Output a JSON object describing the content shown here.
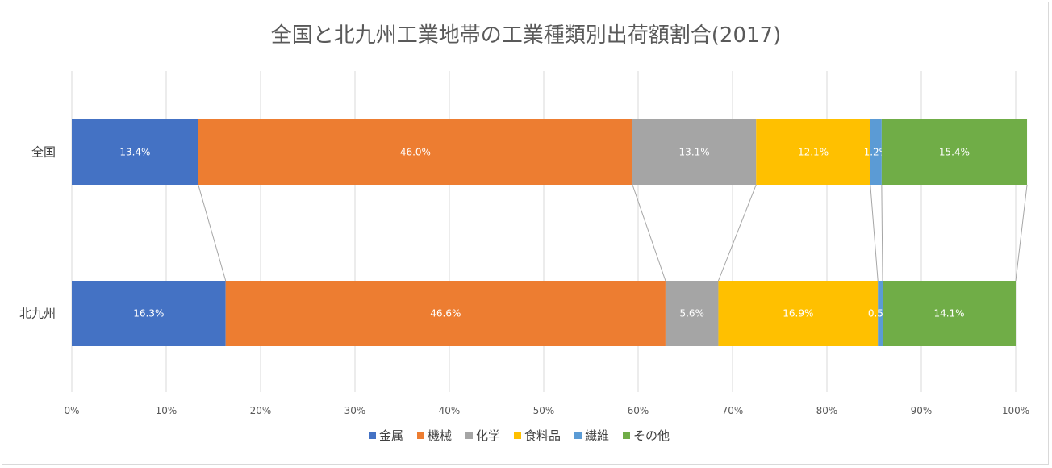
{
  "chart_data": {
    "type": "bar",
    "orientation": "horizontal",
    "stacked": "percent",
    "title": "全国と北九州工業地帯の工業種類別出荷額割合(2017)",
    "categories": [
      "全国",
      "北九州"
    ],
    "series": [
      {
        "name": "金属",
        "color": "#4472C4",
        "values": [
          13.4,
          16.3
        ],
        "labels": [
          "13.4%",
          "16.3%"
        ]
      },
      {
        "name": "機械",
        "color": "#ED7D31",
        "values": [
          46.0,
          46.6
        ],
        "labels": [
          "46.0%",
          "46.6%"
        ]
      },
      {
        "name": "化学",
        "color": "#A5A5A5",
        "values": [
          13.1,
          5.6
        ],
        "labels": [
          "13.1%",
          "5.6%"
        ]
      },
      {
        "name": "食料品",
        "color": "#FFC000",
        "values": [
          12.1,
          16.9
        ],
        "labels": [
          "12.1%",
          "16.9%"
        ]
      },
      {
        "name": "繊維",
        "color": "#5B9BD5",
        "values": [
          1.2,
          0.5
        ],
        "labels": [
          "1.2%",
          "0.5%"
        ]
      },
      {
        "name": "その他",
        "color": "#70AD47",
        "values": [
          15.4,
          14.1
        ],
        "labels": [
          "15.4%",
          "14.1%"
        ]
      }
    ],
    "xlim": [
      0,
      100
    ],
    "xticks": [
      "0%",
      "10%",
      "20%",
      "30%",
      "40%",
      "50%",
      "60%",
      "70%",
      "80%",
      "90%",
      "100%"
    ],
    "grid": true,
    "series_lines": true,
    "legend": "bottom"
  }
}
